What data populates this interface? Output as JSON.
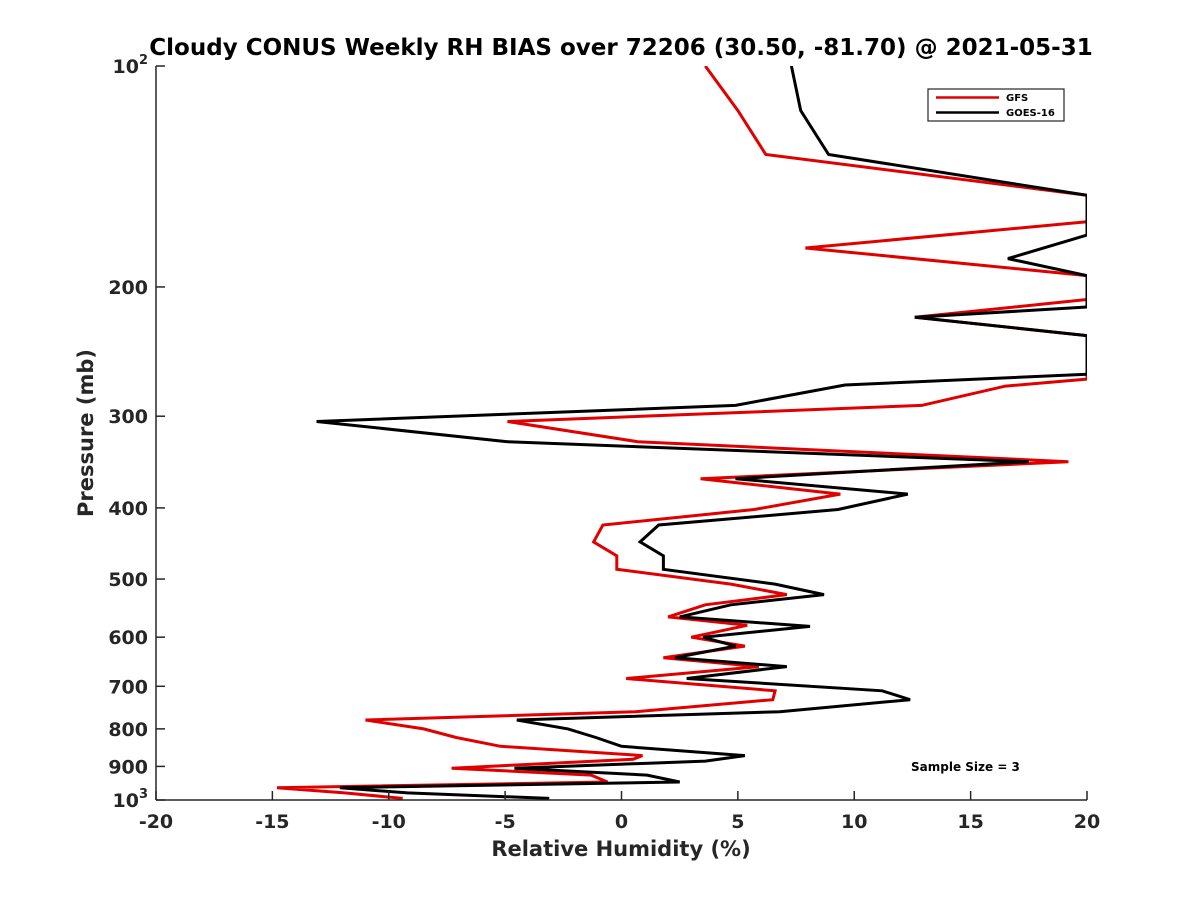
{
  "chart_data": {
    "type": "line",
    "title": "Cloudy CONUS Weekly RH BIAS over 72206 (30.50, -81.70) @ 2021-05-31",
    "xlabel": "Relative Humidity (%)",
    "ylabel": "Pressure (mb)",
    "xlim": [
      -20,
      20
    ],
    "ylim": [
      100,
      1000
    ],
    "yscale": "log",
    "y_reversed": true,
    "xticks": [
      "-20",
      "-15",
      "-10",
      "-5",
      "0",
      "5",
      "10",
      "15",
      "20"
    ],
    "xtick_values": [
      -20,
      -15,
      -10,
      -5,
      0,
      5,
      10,
      15,
      20
    ],
    "yticks": [
      {
        "value": 100,
        "base": "10",
        "exp": "2"
      },
      {
        "value": 200,
        "label": "200"
      },
      {
        "value": 300,
        "label": "300"
      },
      {
        "value": 400,
        "label": "400"
      },
      {
        "value": 500,
        "label": "500"
      },
      {
        "value": 600,
        "label": "600"
      },
      {
        "value": 700,
        "label": "700"
      },
      {
        "value": 800,
        "label": "800"
      },
      {
        "value": 900,
        "label": "900"
      },
      {
        "value": 1000,
        "base": "10",
        "exp": "3"
      }
    ],
    "legend_position": "top-right",
    "annotation": "Sample Size = 3",
    "series": [
      {
        "name": "GFS",
        "color": "#e00000",
        "points": [
          [
            3.6,
            100
          ],
          [
            5.0,
            115
          ],
          [
            6.2,
            132
          ],
          [
            20,
            150
          ],
          [
            20,
            163
          ],
          [
            7.9,
            177
          ],
          [
            20,
            193
          ],
          [
            20,
            208
          ],
          [
            12.6,
            220
          ],
          [
            20,
            233
          ],
          [
            20,
            267
          ],
          [
            16.5,
            273
          ],
          [
            12.9,
            290
          ],
          [
            -4.9,
            305
          ],
          [
            0.7,
            325
          ],
          [
            19.2,
            346
          ],
          [
            3.4,
            365
          ],
          [
            9.4,
            383
          ],
          [
            5.7,
            402
          ],
          [
            -0.8,
            422
          ],
          [
            -1.2,
            445
          ],
          [
            -0.2,
            465
          ],
          [
            -0.2,
            485
          ],
          [
            4.7,
            508
          ],
          [
            7.1,
            525
          ],
          [
            3.6,
            542
          ],
          [
            2.0,
            563
          ],
          [
            5.4,
            578
          ],
          [
            3.0,
            600
          ],
          [
            5.3,
            617
          ],
          [
            1.8,
            640
          ],
          [
            5.9,
            658
          ],
          [
            0.2,
            683
          ],
          [
            6.6,
            710
          ],
          [
            6.5,
            730
          ],
          [
            0.6,
            758
          ],
          [
            -11.0,
            778
          ],
          [
            -8.5,
            800
          ],
          [
            -7.1,
            822
          ],
          [
            -5.2,
            845
          ],
          [
            0.9,
            870
          ],
          [
            0.5,
            880
          ],
          [
            -7.3,
            905
          ],
          [
            -1.3,
            925
          ],
          [
            -0.6,
            945
          ],
          [
            -14.8,
            962
          ],
          [
            -11.9,
            978
          ],
          [
            -9.4,
            995
          ]
        ]
      },
      {
        "name": "GOES-16",
        "color": "#000000",
        "points": [
          [
            7.3,
            100
          ],
          [
            7.7,
            115
          ],
          [
            8.9,
            132
          ],
          [
            20,
            150
          ],
          [
            20,
            170
          ],
          [
            16.6,
            183
          ],
          [
            20,
            193
          ],
          [
            20,
            213
          ],
          [
            12.6,
            220
          ],
          [
            20,
            233
          ],
          [
            20,
            263
          ],
          [
            9.6,
            272
          ],
          [
            4.9,
            290
          ],
          [
            -13.1,
            305
          ],
          [
            -4.9,
            325
          ],
          [
            17.5,
            346
          ],
          [
            4.9,
            365
          ],
          [
            12.3,
            383
          ],
          [
            9.3,
            402
          ],
          [
            1.6,
            422
          ],
          [
            0.8,
            445
          ],
          [
            1.8,
            465
          ],
          [
            1.8,
            485
          ],
          [
            6.6,
            508
          ],
          [
            8.7,
            525
          ],
          [
            4.7,
            542
          ],
          [
            2.5,
            563
          ],
          [
            8.1,
            580
          ],
          [
            3.5,
            600
          ],
          [
            4.9,
            617
          ],
          [
            2.3,
            640
          ],
          [
            7.1,
            658
          ],
          [
            2.8,
            683
          ],
          [
            11.2,
            710
          ],
          [
            12.4,
            730
          ],
          [
            6.8,
            758
          ],
          [
            -4.5,
            778
          ],
          [
            -2.3,
            800
          ],
          [
            -1.1,
            822
          ],
          [
            0,
            845
          ],
          [
            5.3,
            870
          ],
          [
            3.6,
            885
          ],
          [
            -4.6,
            905
          ],
          [
            1.1,
            925
          ],
          [
            2.5,
            945
          ],
          [
            -12.1,
            962
          ],
          [
            -9.2,
            978
          ],
          [
            -3.1,
            995
          ]
        ]
      }
    ]
  }
}
